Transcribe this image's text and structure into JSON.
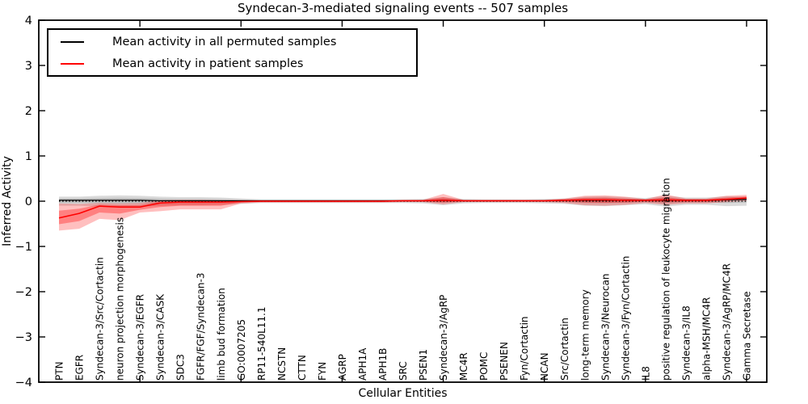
{
  "chart_data": {
    "type": "line",
    "title": "Syndecan-3-mediated signaling events -- 507 samples",
    "xlabel": "Cellular Entities",
    "ylabel": "Inferred Activity",
    "ylim": [
      -4,
      4
    ],
    "yticks": [
      4,
      3,
      2,
      1,
      0,
      -1,
      -2,
      -3,
      -4
    ],
    "xlim": [
      0,
      36
    ],
    "x_minor_ticks": [
      5,
      10,
      15,
      20,
      25,
      30,
      35
    ],
    "grid": false,
    "legend_position": "upper-left",
    "zero_line": {
      "y": 0,
      "style": "dotted",
      "color": "#000000"
    },
    "categories": [
      "PTN",
      "EGFR",
      "Syndecan-3/Src/Cortactin",
      "neuron projection morphogenesis",
      "Syndecan-3/EGFR",
      "Syndecan-3/CASK",
      "SDC3",
      "FGFR/FGF/Syndecan-3",
      "limb bud formation",
      "GO:0007205",
      "RP11-540L11.1",
      "NCSTN",
      "CTTN",
      "FYN",
      "AGRP",
      "APH1A",
      "APH1B",
      "SRC",
      "PSEN1",
      "Syndecan-3/AgRP",
      "MC4R",
      "POMC",
      "PSENEN",
      "Fyn/Cortactin",
      "NCAN",
      "Src/Cortactin",
      "long-term memory",
      "Syndecan-3/Neurocan",
      "Syndecan-3/Fyn/Cortactin",
      "IL8",
      "positive regulation of leukocyte migration",
      "Syndecan-3/IL8",
      "alpha-MSH/MC4R",
      "Syndecan-3/AgRP/MC4R",
      "Gamma Secretase"
    ],
    "series": [
      {
        "name": "Mean activity in all permuted samples",
        "color": "#000000",
        "values": [
          0.02,
          0.02,
          0.02,
          0.02,
          0.02,
          0.01,
          0.01,
          0.01,
          0.01,
          0.01,
          0.01,
          0.01,
          0.01,
          0.01,
          0.01,
          0.01,
          0.01,
          0.01,
          0.01,
          0.02,
          0.01,
          0.01,
          0.01,
          0.01,
          0.01,
          0.02,
          0.02,
          0.02,
          0.02,
          0.02,
          0.02,
          0.02,
          0.02,
          0.03,
          0.04
        ],
        "band_upper": [
          0.1,
          0.1,
          0.12,
          0.13,
          0.12,
          0.1,
          0.09,
          0.09,
          0.08,
          0.06,
          0.04,
          0.04,
          0.04,
          0.04,
          0.04,
          0.04,
          0.04,
          0.04,
          0.05,
          0.09,
          0.05,
          0.04,
          0.04,
          0.04,
          0.05,
          0.06,
          0.1,
          0.11,
          0.09,
          0.07,
          0.12,
          0.08,
          0.08,
          0.11,
          0.1
        ],
        "band_lower": [
          -0.1,
          -0.1,
          -0.12,
          -0.13,
          -0.12,
          -0.1,
          -0.09,
          -0.09,
          -0.08,
          -0.06,
          -0.04,
          -0.04,
          -0.04,
          -0.04,
          -0.04,
          -0.04,
          -0.04,
          -0.04,
          -0.05,
          -0.09,
          -0.05,
          -0.04,
          -0.04,
          -0.04,
          -0.05,
          -0.06,
          -0.1,
          -0.11,
          -0.09,
          -0.07,
          -0.12,
          -0.08,
          -0.08,
          -0.11,
          -0.1
        ]
      },
      {
        "name": "Mean activity in patient samples",
        "color": "#ff0000",
        "values": [
          -0.37,
          -0.27,
          -0.11,
          -0.13,
          -0.13,
          -0.04,
          -0.02,
          -0.02,
          -0.02,
          -0.01,
          0.0,
          0.0,
          0.0,
          0.0,
          0.0,
          0.0,
          0.0,
          0.01,
          0.01,
          0.02,
          0.01,
          0.01,
          0.01,
          0.01,
          0.01,
          0.02,
          0.03,
          0.03,
          0.02,
          0.02,
          0.03,
          0.02,
          0.02,
          0.04,
          0.07
        ],
        "band_upper": [
          -0.05,
          -0.06,
          -0.04,
          -0.05,
          -0.04,
          0.02,
          0.03,
          0.03,
          0.02,
          0.02,
          0.02,
          0.02,
          0.02,
          0.02,
          0.02,
          0.02,
          0.02,
          0.03,
          0.03,
          0.16,
          0.03,
          0.03,
          0.03,
          0.03,
          0.03,
          0.06,
          0.12,
          0.13,
          0.1,
          0.05,
          0.15,
          0.06,
          0.06,
          0.12,
          0.14
        ],
        "band_lower": [
          -0.65,
          -0.61,
          -0.39,
          -0.42,
          -0.25,
          -0.22,
          -0.18,
          -0.18,
          -0.18,
          -0.05,
          -0.03,
          -0.03,
          -0.03,
          -0.03,
          -0.03,
          -0.03,
          -0.03,
          -0.02,
          -0.02,
          -0.07,
          -0.02,
          -0.02,
          -0.02,
          -0.02,
          -0.02,
          -0.04,
          -0.09,
          -0.1,
          -0.08,
          -0.04,
          -0.08,
          -0.05,
          -0.05,
          -0.02,
          0.01
        ]
      }
    ]
  },
  "colors": {
    "frame": "#000000",
    "permuted_line": "#000000",
    "patient_line": "#ff0000",
    "permuted_band": "#bdbdbd",
    "patient_band": "#f6a3a3",
    "background": "#ffffff"
  }
}
